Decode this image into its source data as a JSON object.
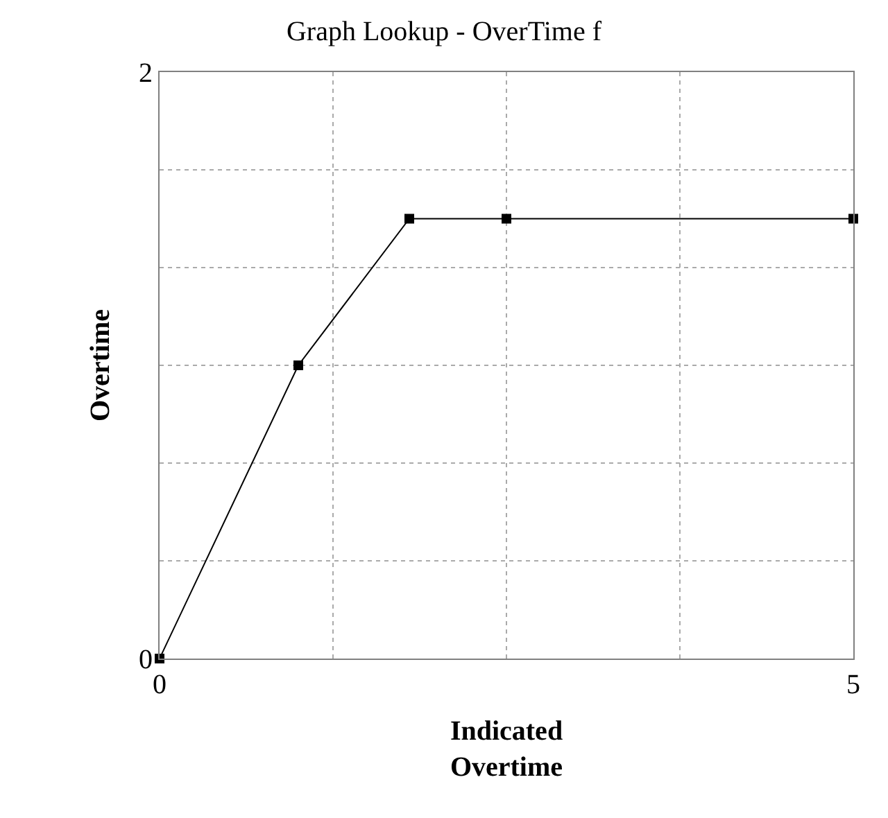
{
  "chart_data": {
    "type": "line",
    "title": "Graph Lookup - OverTime f",
    "xlabel": "Indicated\nOvertime",
    "ylabel": "Overtime",
    "x": [
      0,
      1,
      1.8,
      2.5,
      5
    ],
    "series": [
      {
        "color": "#000000",
        "values": [
          0,
          1,
          1.5,
          1.5,
          1.5
        ]
      }
    ],
    "xlim": [
      0,
      5
    ],
    "xticks": [
      0,
      {
        "value": 1.25,
        "label": null
      },
      {
        "value": 2.5,
        "label": null
      },
      {
        "value": 3.75,
        "label": null
      },
      5
    ],
    "ylim": [
      0,
      2
    ],
    "yticks": [
      0,
      {
        "value": 0.3333,
        "label": null
      },
      {
        "value": 0.6667,
        "label": null
      },
      {
        "value": 1,
        "label": null
      },
      {
        "value": 1.3333,
        "label": null
      },
      {
        "value": 1.6667,
        "label": null
      },
      2
    ],
    "grid": true,
    "marker": "square",
    "line_style": "solid",
    "legend": false
  }
}
